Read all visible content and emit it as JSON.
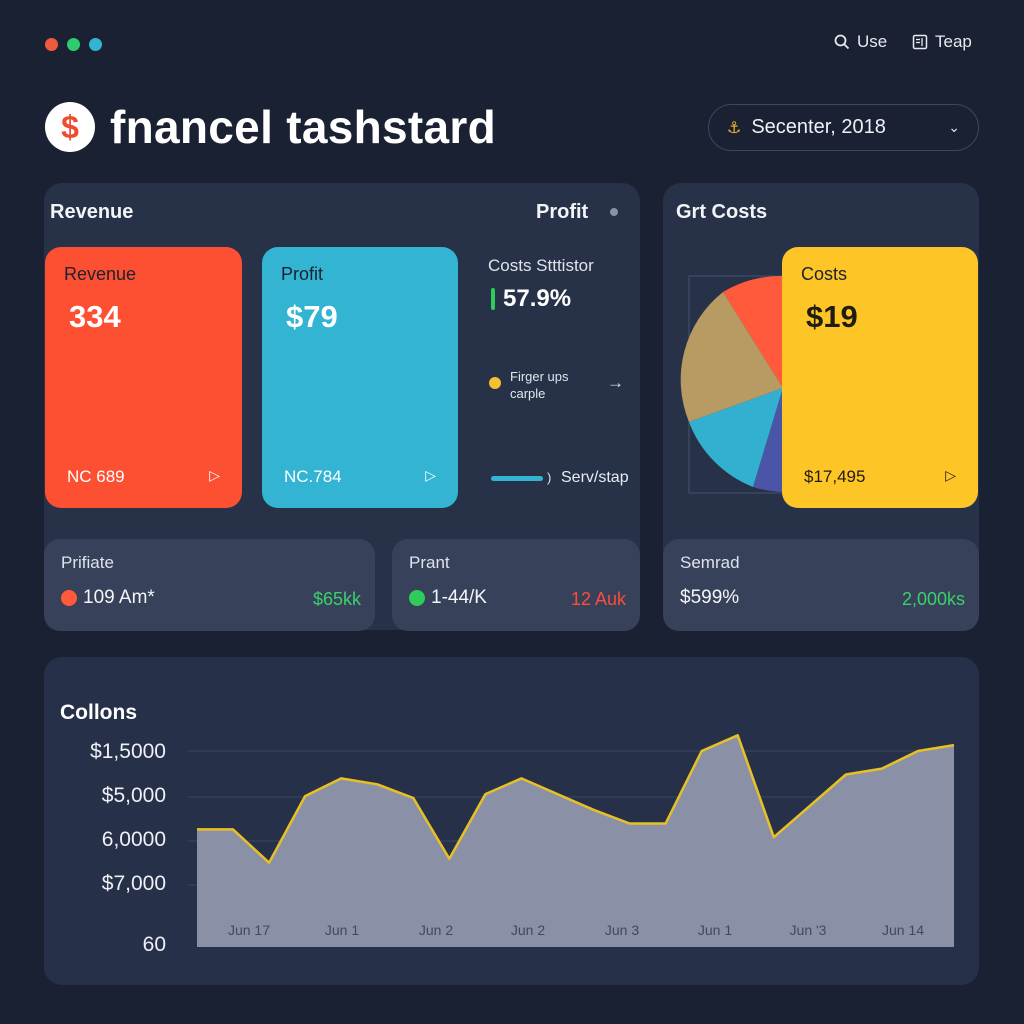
{
  "window": {
    "dots": [
      "#ef5a3c",
      "#2ecc71",
      "#33b5d1"
    ]
  },
  "top_actions": {
    "use_label": "Use",
    "teap_label": "Teap"
  },
  "header": {
    "logo_glyph": "$",
    "title": "fnancel tashstard",
    "date_value": "Secenter, 2018"
  },
  "overview": {
    "title_left": "Revenue",
    "title_right": "Profit",
    "cards": {
      "revenue": {
        "label": "Revenue",
        "value": "334",
        "foot": "NC 689",
        "color": "#fd4f32"
      },
      "profit": {
        "label": "Profit",
        "value": "$79",
        "foot": "NC.784",
        "color": "#33b4d3"
      }
    },
    "costs_stat": {
      "label": "Costs Stttistor",
      "percent": "57.9%",
      "legend_line1": "Firger ups",
      "legend_line2": "carple",
      "service_label": "Serv/stap"
    }
  },
  "costs_panel": {
    "title": "Grt Costs",
    "card": {
      "label": "Costs",
      "value": "$19",
      "foot": "$17,495",
      "color": "#fdc526"
    },
    "pie_colors": [
      "#ff5a3c",
      "#b89a63",
      "#33b0cf",
      "#4a55a8"
    ]
  },
  "stats": [
    {
      "label": "Prifiate",
      "left_value": "109 Am*",
      "right_value": "$65kk",
      "bullet": "#ff5a3c",
      "right_color": "#3ad16a"
    },
    {
      "label": "Prant",
      "left_value": "1-44/K",
      "right_value": "12 Auk",
      "bullet": "#2ecc5a",
      "right_color": "#ff4b3a"
    },
    {
      "label": "Semrad",
      "left_value": "$599%",
      "right_value": "2,000ks",
      "bullet": "",
      "right_color": "#3ad16a"
    }
  ],
  "collections": {
    "title": "Collons"
  },
  "chart_data": {
    "type": "area",
    "title": "Collons",
    "y_tick_labels": [
      "$1,5000",
      "$5,000",
      "6,0000",
      "$7,000",
      "60"
    ],
    "x_tick_labels": [
      "Jun 17",
      "Jun 1",
      "Jun 2",
      "Jun 2",
      "Jun 3",
      "Jun 1",
      "Jun '3",
      "Jun 14"
    ],
    "series": [
      {
        "values": [
          0.6,
          0.6,
          0.43,
          0.77,
          0.86,
          0.83,
          0.76,
          0.45,
          0.78,
          0.86,
          0.78,
          0.7,
          0.63,
          0.63,
          1.0,
          1.08,
          0.56,
          0.72,
          0.88,
          0.91,
          1.0,
          1.03
        ]
      }
    ],
    "value_scale": "relative (0 = baseline, 1 = top gridline)",
    "grid": true,
    "line_color": "#e8c024",
    "fill_color": "#8a91a6"
  }
}
